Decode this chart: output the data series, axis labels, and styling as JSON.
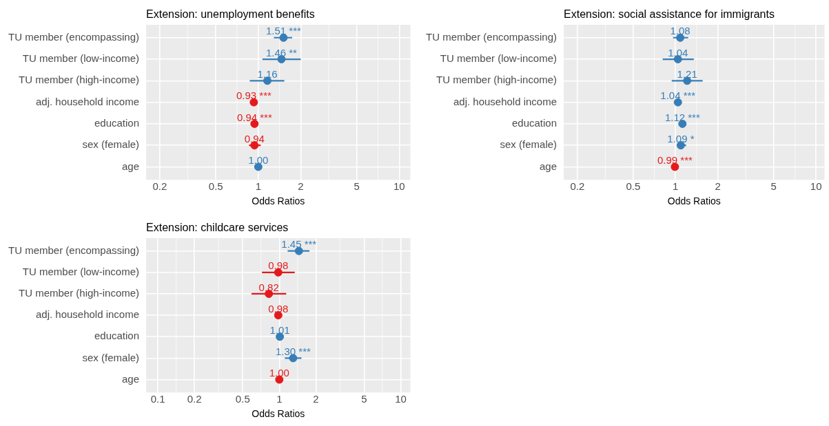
{
  "chart_data": [
    {
      "type": "scatter",
      "orientation": "horizontal",
      "title": "Extension: unemployment benefits",
      "xlabel": "Odds Ratios",
      "categories": [
        "TU member (encompassing)",
        "TU member (low-income)",
        "TU member (high-income)",
        "adj. household income",
        "education",
        "sex (female)",
        "age"
      ],
      "values": [
        1.51,
        1.46,
        1.16,
        0.93,
        0.94,
        0.94,
        1.0
      ],
      "colors": [
        "#377eb8",
        "#377eb8",
        "#377eb8",
        "#e41a1c",
        "#e41a1c",
        "#e41a1c",
        "#377eb8"
      ],
      "errors": [
        [
          1.29,
          1.74
        ],
        [
          1.07,
          2.0
        ],
        [
          0.87,
          1.53
        ],
        null,
        null,
        [
          0.86,
          1.04
        ],
        null
      ],
      "value_labels": [
        "1.51 ***",
        "1.46 **",
        "1.16",
        "0.93 ***",
        "0.94 ***",
        "0.94",
        "1.00"
      ],
      "log": "x",
      "xlim": [
        0.16,
        12
      ],
      "xticks": [
        0.2,
        0.5,
        1,
        2,
        5,
        10
      ],
      "grid": true,
      "marker": "circle"
    },
    {
      "type": "scatter",
      "orientation": "horizontal",
      "title": "Extension: social assistance for immigrants",
      "xlabel": "Odds Ratios",
      "categories": [
        "TU member (encompassing)",
        "TU member (low-income)",
        "TU member (high-income)",
        "adj. household income",
        "education",
        "sex (female)",
        "age"
      ],
      "values": [
        1.08,
        1.04,
        1.21,
        1.04,
        1.12,
        1.09,
        0.99
      ],
      "colors": [
        "#377eb8",
        "#377eb8",
        "#377eb8",
        "#377eb8",
        "#377eb8",
        "#377eb8",
        "#e41a1c"
      ],
      "errors": [
        [
          0.96,
          1.23
        ],
        [
          0.81,
          1.35
        ],
        [
          0.94,
          1.56
        ],
        null,
        null,
        [
          1.04,
          1.19
        ],
        null
      ],
      "value_labels": [
        "1.08",
        "1.04",
        "1.21",
        "1.04 ***",
        "1.12 ***",
        "1.09 *",
        "0.99 ***"
      ],
      "log": "x",
      "xlim": [
        0.16,
        11.5
      ],
      "xticks": [
        0.2,
        0.5,
        1,
        2,
        5,
        10
      ],
      "grid": true,
      "marker": "circle"
    },
    {
      "type": "scatter",
      "orientation": "horizontal",
      "title": "Extension: childcare services",
      "xlabel": "Odds Ratios",
      "categories": [
        "TU member (encompassing)",
        "TU member (low-income)",
        "TU member (high-income)",
        "adj. household income",
        "education",
        "sex (female)",
        "age"
      ],
      "values": [
        1.45,
        0.98,
        0.82,
        0.98,
        1.01,
        1.3,
        1.0
      ],
      "colors": [
        "#377eb8",
        "#e41a1c",
        "#e41a1c",
        "#e41a1c",
        "#377eb8",
        "#377eb8",
        "#e41a1c"
      ],
      "errors": [
        [
          1.17,
          1.77
        ],
        [
          0.72,
          1.34
        ],
        [
          0.59,
          1.14
        ],
        null,
        null,
        [
          1.11,
          1.52
        ],
        null
      ],
      "value_labels": [
        "1.45 ***",
        "0.98",
        "0.82",
        "0.98",
        "1.01",
        "1.30 ***",
        "1.00"
      ],
      "log": "x",
      "xlim": [
        0.08,
        12
      ],
      "xticks": [
        0.1,
        0.2,
        0.5,
        1,
        2,
        5,
        10
      ],
      "grid": true,
      "marker": "circle"
    }
  ]
}
